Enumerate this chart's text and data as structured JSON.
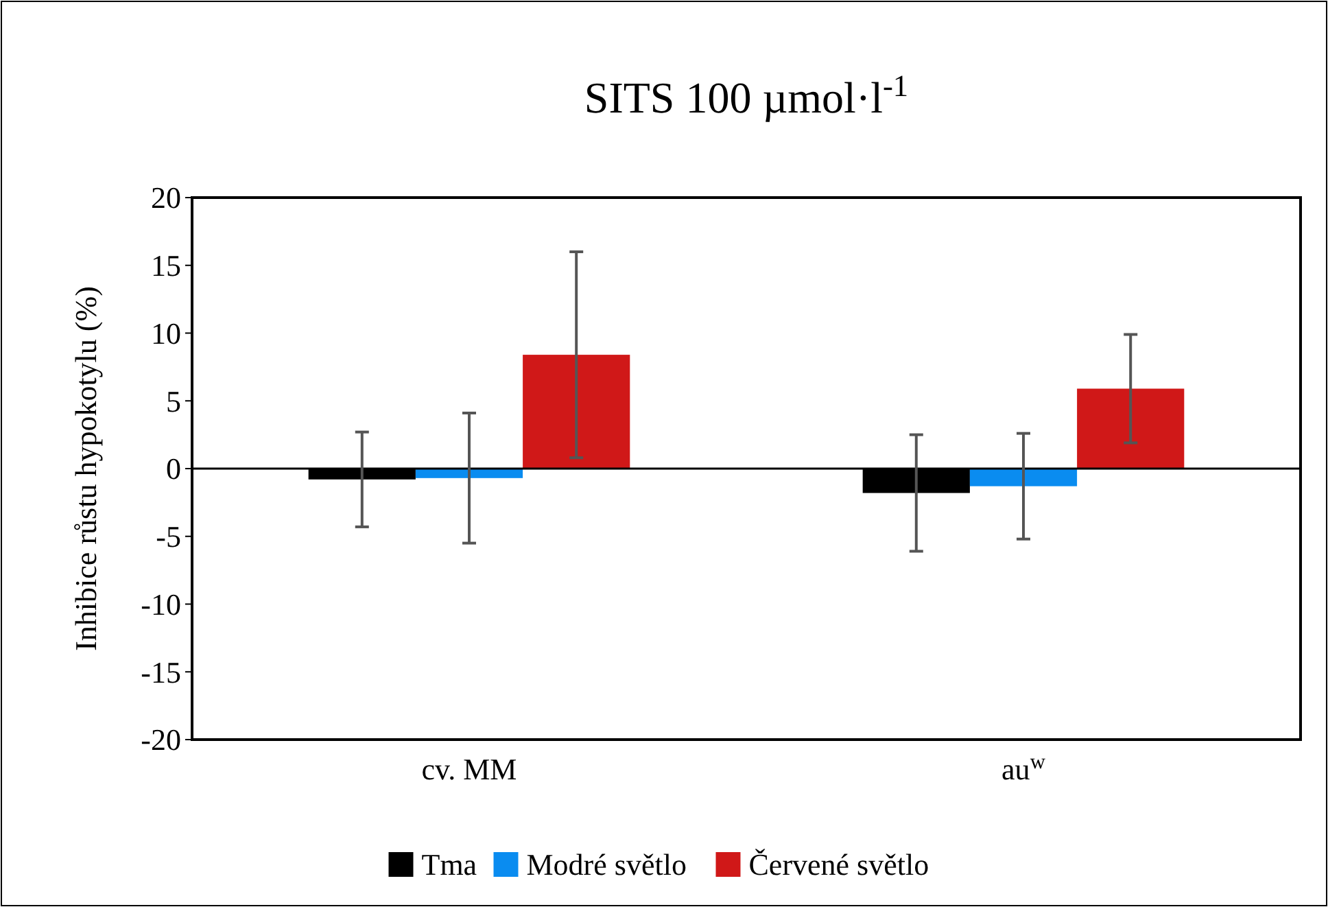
{
  "chart_data": {
    "type": "bar",
    "title": "SITS 100 µmol·l$^{-1}$",
    "ylabel": "Inhibice růstu hypokotylu (%)",
    "categories": [
      "cv. MM",
      "au$^{w}$"
    ],
    "series": [
      {
        "name": "Tma",
        "color": "#000000",
        "values": [
          -0.8,
          -1.8
        ],
        "errors": [
          3.5,
          4.3
        ]
      },
      {
        "name": "Modré světlo",
        "color": "#0a8cf0",
        "values": [
          -0.7,
          -1.3
        ],
        "errors": [
          4.8,
          3.9
        ]
      },
      {
        "name": "Červené světlo",
        "color": "#d01818",
        "values": [
          8.4,
          5.9
        ],
        "errors": [
          7.6,
          4.0
        ]
      }
    ],
    "ylim": [
      -20,
      20
    ],
    "yticks": [
      -20,
      -15,
      -10,
      -5,
      0,
      5,
      10,
      15,
      20
    ],
    "legend": "bottom"
  }
}
